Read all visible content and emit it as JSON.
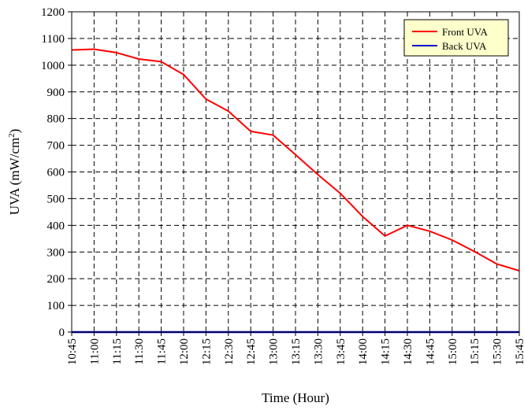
{
  "chart_data": {
    "type": "line",
    "title": "",
    "xlabel": "Time (Hour)",
    "ylabel_main": "UVA (mW/cm",
    "ylabel_sup": "2",
    "ylabel_close": ")",
    "ylim": [
      0,
      1200
    ],
    "ytick_step": 100,
    "categories": [
      "10:45",
      "11:00",
      "11:15",
      "11:30",
      "11:45",
      "12:00",
      "12:15",
      "12:30",
      "12:45",
      "13:00",
      "13:15",
      "13:30",
      "13:45",
      "14:00",
      "14:15",
      "14:30",
      "14:45",
      "15:00",
      "15:15",
      "15:30",
      "15:45"
    ],
    "series": [
      {
        "name": "Front UVA",
        "color": "#ff0000",
        "values": [
          1057,
          1060,
          1047,
          1023,
          1013,
          965,
          873,
          828,
          752,
          738,
          665,
          590,
          520,
          433,
          360,
          400,
          378,
          345,
          302,
          255,
          230
        ]
      },
      {
        "name": "Back UVA",
        "color": "#0000cc",
        "values": [
          0,
          0,
          0,
          0,
          0,
          0,
          0,
          0,
          0,
          0,
          0,
          0,
          0,
          0,
          0,
          0,
          0,
          0,
          0,
          0,
          0
        ]
      }
    ],
    "grid": true,
    "grid_style": "dashed",
    "legend_position": "top-right",
    "legend_background": "#ffffcc"
  }
}
